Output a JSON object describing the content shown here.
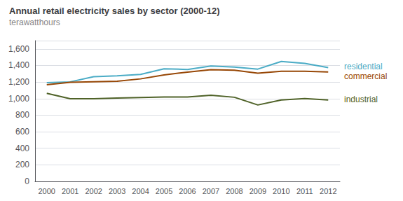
{
  "chart_data": {
    "type": "line",
    "title": "Annual retail electricity sales by sector (2000-12)",
    "subtitle": "terawatthours",
    "categories": [
      "2000",
      "2001",
      "2002",
      "2003",
      "2004",
      "2005",
      "2006",
      "2007",
      "2008",
      "2009",
      "2010",
      "2011",
      "2012"
    ],
    "series": [
      {
        "name": "residential",
        "color": "#4bacc6",
        "values": [
          1192,
          1202,
          1265,
          1276,
          1292,
          1359,
          1352,
          1393,
          1380,
          1356,
          1449,
          1425,
          1375
        ]
      },
      {
        "name": "commercial",
        "color": "#974706",
        "values": [
          1168,
          1197,
          1203,
          1210,
          1238,
          1285,
          1320,
          1350,
          1342,
          1307,
          1330,
          1331,
          1322
        ]
      },
      {
        "name": "industrial",
        "color": "#4f6228",
        "values": [
          1064,
          998,
          997,
          1006,
          1013,
          1020,
          1020,
          1040,
          1016,
          923,
          984,
          1000,
          983
        ]
      }
    ],
    "ylim": [
      0,
      1700
    ],
    "yticks": [
      0,
      200,
      400,
      600,
      800,
      {
        "value": 1000,
        "label": "1,000"
      },
      {
        "value": 1200,
        "label": "1,200"
      },
      {
        "value": 1400,
        "label": "1,400"
      },
      {
        "value": 1600,
        "label": "1,600"
      }
    ],
    "grid": true
  }
}
